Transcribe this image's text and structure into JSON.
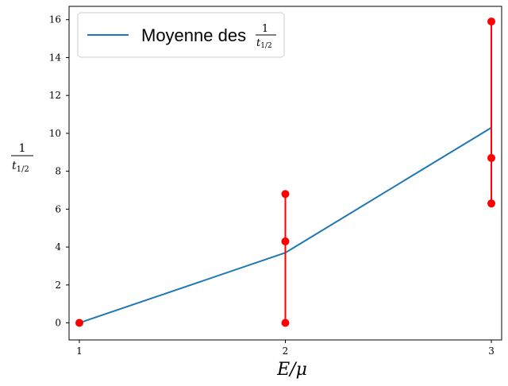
{
  "chart_data": {
    "type": "line",
    "xlabel": "E/μ",
    "ylabel": {
      "numerator": "1",
      "denominator": "t",
      "subscript": "1/2"
    },
    "xlim": [
      0.95,
      3.05
    ],
    "ylim": [
      -0.9,
      16.7
    ],
    "xticks": [
      1,
      2,
      3
    ],
    "yticks": [
      0,
      2,
      4,
      6,
      8,
      10,
      12,
      14,
      16
    ],
    "grid": false,
    "legend": {
      "placement": "top-left",
      "entries": [
        {
          "text": "Moyenne des",
          "frac_num": "1",
          "frac_den": "t",
          "frac_sub": "1/2"
        }
      ]
    },
    "series": [
      {
        "style": "line",
        "color": "#1f77b4",
        "x": [
          1,
          2,
          3
        ],
        "y": [
          0,
          3.7,
          10.3
        ]
      }
    ],
    "points": {
      "color": "#ff0000",
      "groups": [
        {
          "x": 1,
          "y": [
            0
          ]
        },
        {
          "x": 2,
          "y": [
            0,
            4.3,
            6.8
          ]
        },
        {
          "x": 3,
          "y": [
            6.3,
            8.7,
            15.9
          ]
        }
      ]
    }
  }
}
